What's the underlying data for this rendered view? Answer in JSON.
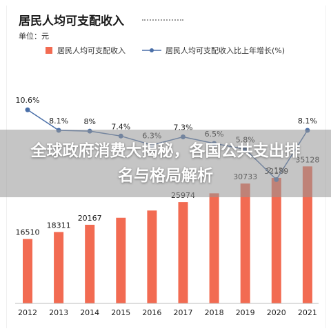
{
  "banner": {
    "title": "全球政府消费大揭秘，各国公共支出排名与格局解析"
  },
  "chart_data": {
    "type": "bar",
    "title": "居民人均可支配收入",
    "unit_label": "单位：元",
    "categories": [
      "2012",
      "2013",
      "2014",
      "2015",
      "2016",
      "2017",
      "2018",
      "2019",
      "2020",
      "2021"
    ],
    "series": [
      {
        "name": "居民人均可支配收入",
        "chart": "bar",
        "values": [
          16510,
          18311,
          20167,
          21966,
          23821,
          25974,
          28228,
          30733,
          32189,
          35128
        ],
        "labels": [
          "16510",
          "18311",
          "20167",
          "",
          "",
          "25974",
          "",
          "30733",
          "32189",
          "35128"
        ],
        "color": "#f26b52"
      },
      {
        "name": "居民人均可支配收入比上年增长(%)",
        "chart": "line",
        "values": [
          10.6,
          8.1,
          8.0,
          7.4,
          6.3,
          7.3,
          6.5,
          5.8,
          2.1,
          8.1
        ],
        "labels": [
          "10.6%",
          "8.1%",
          "8%",
          "7.4%",
          "6.3%",
          "7.3%",
          "6.5%",
          "5.8%",
          "2.1%",
          "8.1%"
        ],
        "color": "#4a6fa8"
      }
    ],
    "bar_ylim": [
      0,
      61000
    ],
    "line_ylim": [
      -13,
      16
    ],
    "legend_position": "top",
    "grid": false
  }
}
